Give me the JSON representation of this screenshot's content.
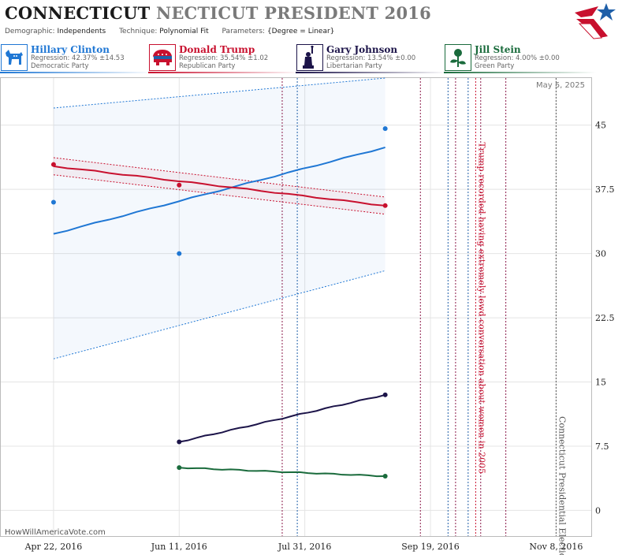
{
  "header": {
    "title_main": "CONNECTICUT",
    "title_rest": "NECTICUT PRESIDENT 2016",
    "demographic_label": "Demographic:",
    "demographic_value": "Independents",
    "technique_label": "Technique:",
    "technique_value": "Polynomial Fit",
    "parameters_label": "Parameters:",
    "parameters_value": "{Degree = Linear}"
  },
  "candidates": [
    {
      "name": "Hillary Clinton",
      "regression": "Regression: 42.37% ±14.53",
      "party": "Democratic Party",
      "color": "#1f77d4",
      "icon": "donkey-icon"
    },
    {
      "name": "Donald Trump",
      "regression": "Regression: 35.54% ±1.02",
      "party": "Republican Party",
      "color": "#c8102e",
      "icon": "elephant-icon"
    },
    {
      "name": "Gary Johnson",
      "regression": "Regression: 13.54% ±0.00",
      "party": "Libertarian Party",
      "color": "#1c1449",
      "icon": "statue-of-liberty-icon"
    },
    {
      "name": "Jill Stein",
      "regression": "Regression: 4.00% ±0.00",
      "party": "Green Party",
      "color": "#1a6b3c",
      "icon": "rose-icon"
    }
  ],
  "chart_data": {
    "type": "scatter",
    "date_label": "May 5, 2025",
    "watermark": "HowWillAmericaVote.com",
    "x_ticks": [
      "Apr 22, 2016",
      "Jun 11, 2016",
      "Jul 31, 2016",
      "Sep 19, 2016",
      "Nov 8, 2016"
    ],
    "x_tick_dates": [
      "2016-04-22",
      "2016-06-11",
      "2016-07-31",
      "2016-09-19",
      "2016-11-08"
    ],
    "xlim": [
      "2016-04-01",
      "2016-11-22"
    ],
    "y_ticks": [
      0,
      7.5,
      15,
      22.5,
      30,
      37.5,
      45
    ],
    "ylim": [
      -3,
      50.5
    ],
    "grid": true,
    "series": [
      {
        "name": "Hillary Clinton",
        "color": "#1f77d4",
        "points": [
          [
            "2016-04-22",
            36
          ],
          [
            "2016-06-11",
            30
          ],
          [
            "2016-09-01",
            44.6
          ]
        ],
        "fit": [
          [
            "2016-04-22",
            32.3
          ],
          [
            "2016-09-01",
            42.4
          ]
        ],
        "band_upper": [
          [
            "2016-04-22",
            47
          ],
          [
            "2016-09-01",
            57
          ]
        ],
        "band_lower": [
          [
            "2016-04-22",
            17.7
          ],
          [
            "2016-09-01",
            28
          ]
        ]
      },
      {
        "name": "Donald Trump",
        "color": "#c8102e",
        "points": [
          [
            "2016-04-22",
            40.4
          ],
          [
            "2016-06-11",
            38.0
          ],
          [
            "2016-09-01",
            35.6
          ]
        ],
        "fit": [
          [
            "2016-04-22",
            40.2
          ],
          [
            "2016-09-01",
            35.6
          ]
        ],
        "band_upper": [
          [
            "2016-04-22",
            41.2
          ],
          [
            "2016-09-01",
            36.6
          ]
        ],
        "band_lower": [
          [
            "2016-04-22",
            39.2
          ],
          [
            "2016-09-01",
            34.6
          ]
        ]
      },
      {
        "name": "Gary Johnson",
        "color": "#1c1449",
        "points": [
          [
            "2016-06-11",
            8.0
          ],
          [
            "2016-09-01",
            13.5
          ]
        ],
        "fit": [
          [
            "2016-06-11",
            8.0
          ],
          [
            "2016-09-01",
            13.5
          ]
        ]
      },
      {
        "name": "Jill Stein",
        "color": "#1a6b3c",
        "points": [
          [
            "2016-06-11",
            5.0
          ],
          [
            "2016-09-01",
            4.0
          ]
        ],
        "fit": [
          [
            "2016-06-11",
            5.0
          ],
          [
            "2016-09-01",
            4.0
          ]
        ]
      }
    ],
    "event_lines": [
      {
        "date": "2016-07-22",
        "color": "#8b1a4a"
      },
      {
        "date": "2016-07-28",
        "color": "#1f5fa8"
      },
      {
        "date": "2016-09-15",
        "color": "#8b1a4a"
      },
      {
        "date": "2016-09-26",
        "color": "#1f5fa8"
      },
      {
        "date": "2016-09-29",
        "color": "#8b1a4a"
      },
      {
        "date": "2016-10-04",
        "color": "#1f5fa8"
      },
      {
        "date": "2016-10-07",
        "color": "#c8102e"
      },
      {
        "date": "2016-10-09",
        "color": "#8b1a4a"
      },
      {
        "date": "2016-10-19",
        "color": "#8b1a4a"
      },
      {
        "date": "2016-11-08",
        "color": "#555555"
      }
    ],
    "annotations": [
      {
        "text": "Trump recorded having extremely lewd conversation about women in 2005",
        "date": "2016-10-07",
        "color": "#c8102e",
        "y": 43
      },
      {
        "text": "Connecticut Presidential Election",
        "date": "2016-11-08",
        "color": "#555555",
        "y": 11
      }
    ]
  }
}
